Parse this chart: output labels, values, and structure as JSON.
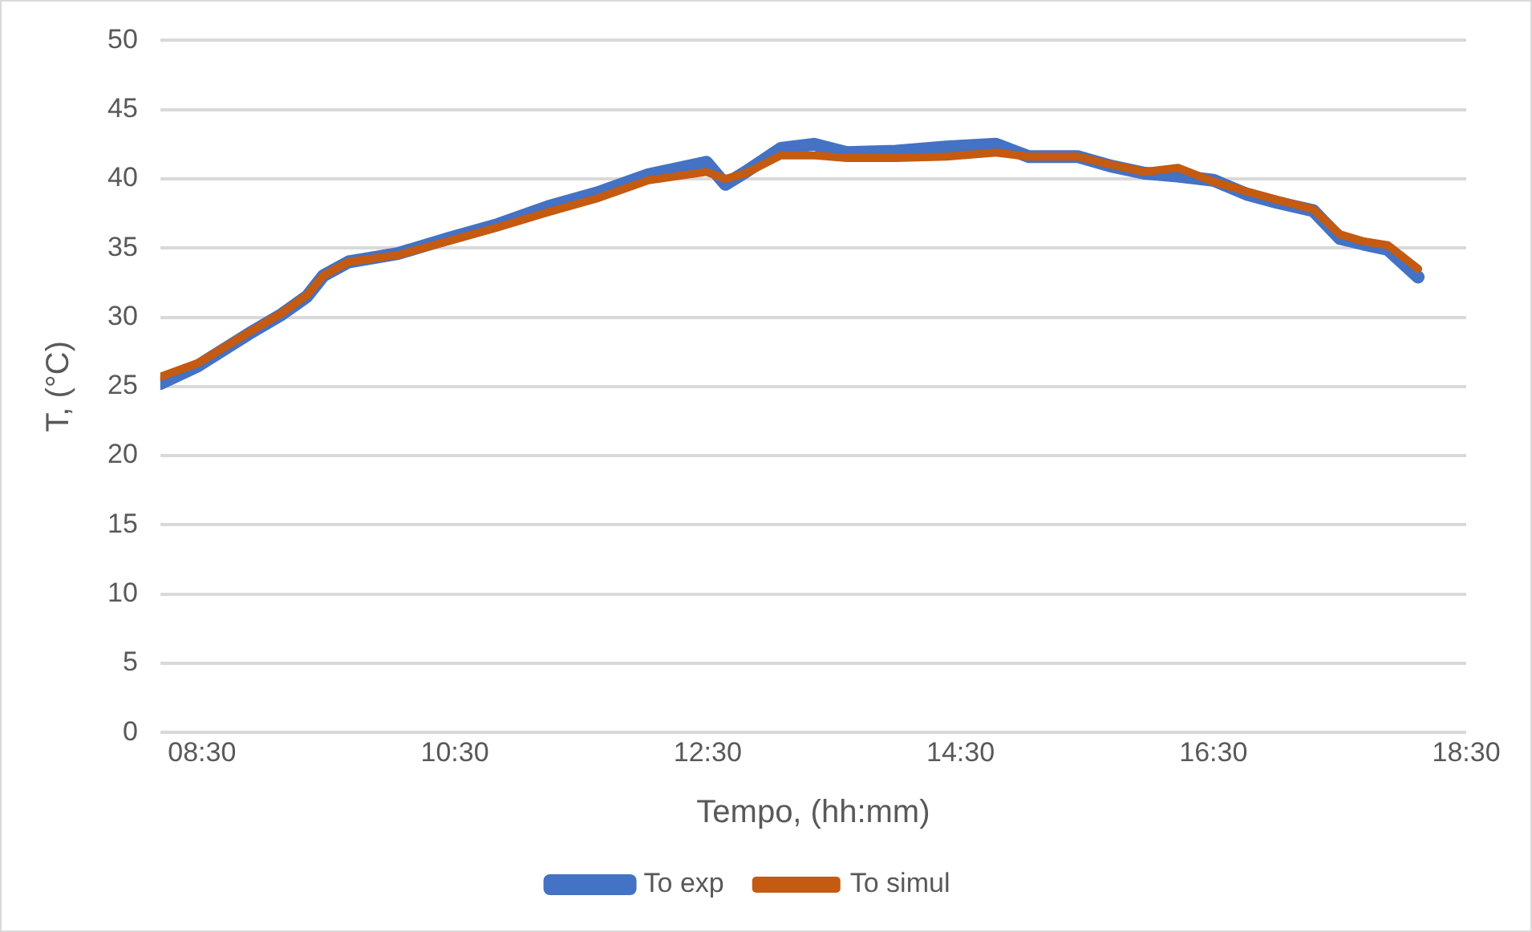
{
  "chart_data": {
    "type": "line",
    "xlabel": "Tempo, (hh:mm)",
    "ylabel": "T, (°C)",
    "x": [
      8.17,
      8.47,
      8.87,
      9.13,
      9.33,
      9.46,
      9.66,
      10.05,
      10.45,
      10.84,
      11.24,
      11.63,
      12.03,
      12.49,
      12.64,
      12.8,
      13.08,
      13.34,
      13.6,
      13.99,
      14.39,
      14.78,
      15.04,
      15.43,
      15.7,
      15.96,
      16.22,
      16.5,
      16.76,
      17.0,
      17.29,
      17.5,
      17.68,
      17.88,
      18.12
    ],
    "series": [
      {
        "name": "To exp",
        "color": "#4472c4",
        "values": [
          25.2,
          26.5,
          28.8,
          30.2,
          31.5,
          33.0,
          34.0,
          34.6,
          35.7,
          36.7,
          38.0,
          39.0,
          40.3,
          41.2,
          39.6,
          40.5,
          42.2,
          42.5,
          41.9,
          42.0,
          42.3,
          42.5,
          41.6,
          41.6,
          40.9,
          40.4,
          40.2,
          39.9,
          38.9,
          38.3,
          37.7,
          35.7,
          35.3,
          34.9,
          32.9
        ]
      },
      {
        "name": "To simul",
        "color": "#c55a11",
        "values": [
          25.7,
          26.7,
          28.9,
          30.3,
          31.6,
          33.0,
          34.0,
          34.5,
          35.5,
          36.5,
          37.6,
          38.6,
          39.9,
          40.5,
          40.0,
          40.4,
          41.7,
          41.7,
          41.5,
          41.5,
          41.6,
          41.9,
          41.6,
          41.6,
          41.0,
          40.5,
          40.8,
          39.8,
          39.1,
          38.5,
          37.8,
          36.0,
          35.5,
          35.2,
          33.5
        ]
      }
    ],
    "xlim": [
      8.17,
      18.5
    ],
    "xticks": [
      {
        "value": 8.5,
        "label": "08:30"
      },
      {
        "value": 10.5,
        "label": "10:30"
      },
      {
        "value": 12.5,
        "label": "12:30"
      },
      {
        "value": 14.5,
        "label": "14:30"
      },
      {
        "value": 16.5,
        "label": "16:30"
      },
      {
        "value": 18.5,
        "label": "18:30"
      }
    ],
    "ylim": [
      0,
      50
    ],
    "yticks": [
      0,
      5,
      10,
      15,
      20,
      25,
      30,
      35,
      40,
      45,
      50
    ],
    "grid": "y",
    "legend": "bottom",
    "marker": "none",
    "line_style": "solid"
  }
}
